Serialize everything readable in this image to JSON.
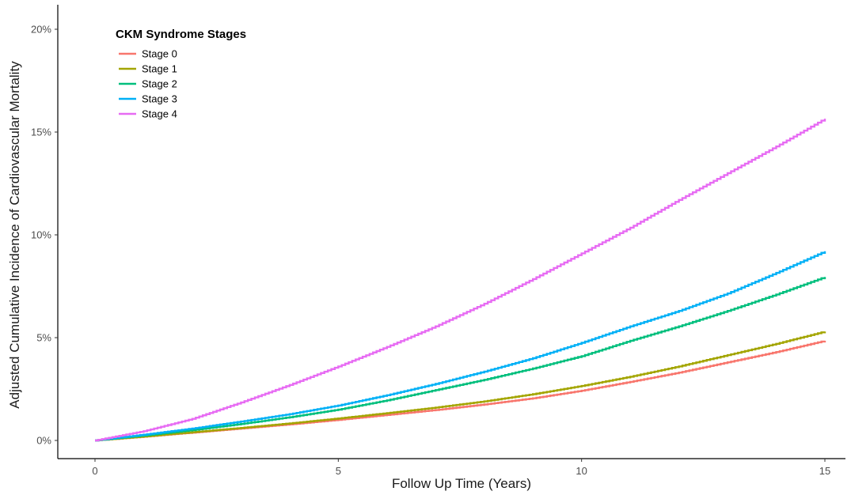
{
  "chart_data": {
    "type": "line",
    "title": "",
    "xlabel": "Follow Up Time (Years)",
    "ylabel": "Adjusted Cumulative Incidence of Cardiovascular Mortality",
    "xlim": [
      0,
      15
    ],
    "ylim": [
      0,
      20
    ],
    "x_ticks": [
      0,
      5,
      10,
      15
    ],
    "x_tick_labels": [
      "0",
      "5",
      "10",
      "15"
    ],
    "y_ticks": [
      0,
      5,
      10,
      15,
      20
    ],
    "y_tick_labels": [
      "0%",
      "5%",
      "10%",
      "15%",
      "20%"
    ],
    "grid": false,
    "legend": {
      "title": "CKM Syndrome Stages",
      "placement": "top-left"
    },
    "x": [
      0,
      1,
      2,
      3,
      4,
      5,
      6,
      7,
      8,
      9,
      10,
      11,
      12,
      13,
      14,
      15
    ],
    "series": [
      {
        "name": "Stage 0",
        "color": "#F8766D",
        "values": [
          0,
          0.18,
          0.38,
          0.58,
          0.78,
          1.0,
          1.24,
          1.48,
          1.75,
          2.05,
          2.42,
          2.85,
          3.3,
          3.8,
          4.3,
          4.85
        ]
      },
      {
        "name": "Stage 1",
        "color": "#A3A500",
        "values": [
          0,
          0.19,
          0.4,
          0.61,
          0.83,
          1.07,
          1.33,
          1.6,
          1.9,
          2.25,
          2.65,
          3.1,
          3.6,
          4.15,
          4.7,
          5.3
        ]
      },
      {
        "name": "Stage 2",
        "color": "#00BF7D",
        "values": [
          0,
          0.24,
          0.5,
          0.8,
          1.13,
          1.5,
          1.95,
          2.45,
          2.95,
          3.5,
          4.1,
          4.85,
          5.55,
          6.3,
          7.1,
          7.95
        ]
      },
      {
        "name": "Stage 3",
        "color": "#00B0F6",
        "values": [
          0,
          0.28,
          0.58,
          0.92,
          1.28,
          1.7,
          2.2,
          2.75,
          3.35,
          4.0,
          4.75,
          5.55,
          6.3,
          7.15,
          8.15,
          9.2
        ]
      },
      {
        "name": "Stage 4",
        "color": "#E76BF3",
        "values": [
          0,
          0.45,
          1.05,
          1.85,
          2.7,
          3.6,
          4.55,
          5.55,
          6.65,
          7.85,
          9.1,
          10.35,
          11.7,
          13.0,
          14.3,
          15.65
        ]
      }
    ]
  }
}
